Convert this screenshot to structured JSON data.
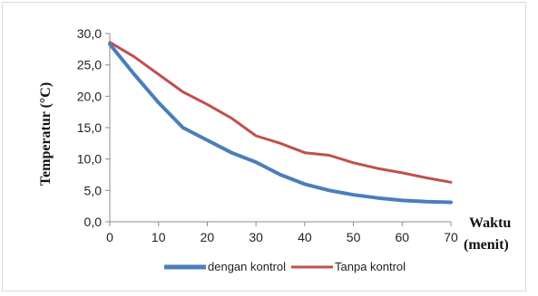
{
  "chart_data": {
    "type": "line",
    "title": "",
    "xlabel": "Waktu",
    "xlabel_unit": "(menit)",
    "ylabel": "Temperatur (°C)",
    "xlim": [
      0,
      70
    ],
    "ylim": [
      0,
      30
    ],
    "x_ticks": [
      "0",
      "10",
      "20",
      "30",
      "40",
      "50",
      "60",
      "70"
    ],
    "y_ticks": [
      "0,0",
      "5,0",
      "10,0",
      "15,0",
      "20,0",
      "25,0",
      "30,0"
    ],
    "grid": false,
    "legend_position": "bottom",
    "series": [
      {
        "name": "dengan kontrol",
        "color": "#4a7ebb",
        "x": [
          0,
          5,
          10,
          15,
          20,
          25,
          30,
          35,
          40,
          45,
          50,
          55,
          60,
          65,
          70
        ],
        "y": [
          28.3,
          23.5,
          19.0,
          15.0,
          13.0,
          11.0,
          9.5,
          7.5,
          6.0,
          5.0,
          4.3,
          3.8,
          3.4,
          3.2,
          3.1
        ]
      },
      {
        "name": "Tanpa kontrol",
        "color": "#c0504d",
        "x": [
          0,
          5,
          10,
          15,
          20,
          25,
          30,
          35,
          40,
          45,
          50,
          55,
          60,
          65,
          70
        ],
        "y": [
          28.6,
          26.3,
          23.5,
          20.7,
          18.7,
          16.5,
          13.7,
          12.5,
          11.0,
          10.6,
          9.4,
          8.5,
          7.8,
          7.0,
          6.3
        ]
      }
    ]
  }
}
